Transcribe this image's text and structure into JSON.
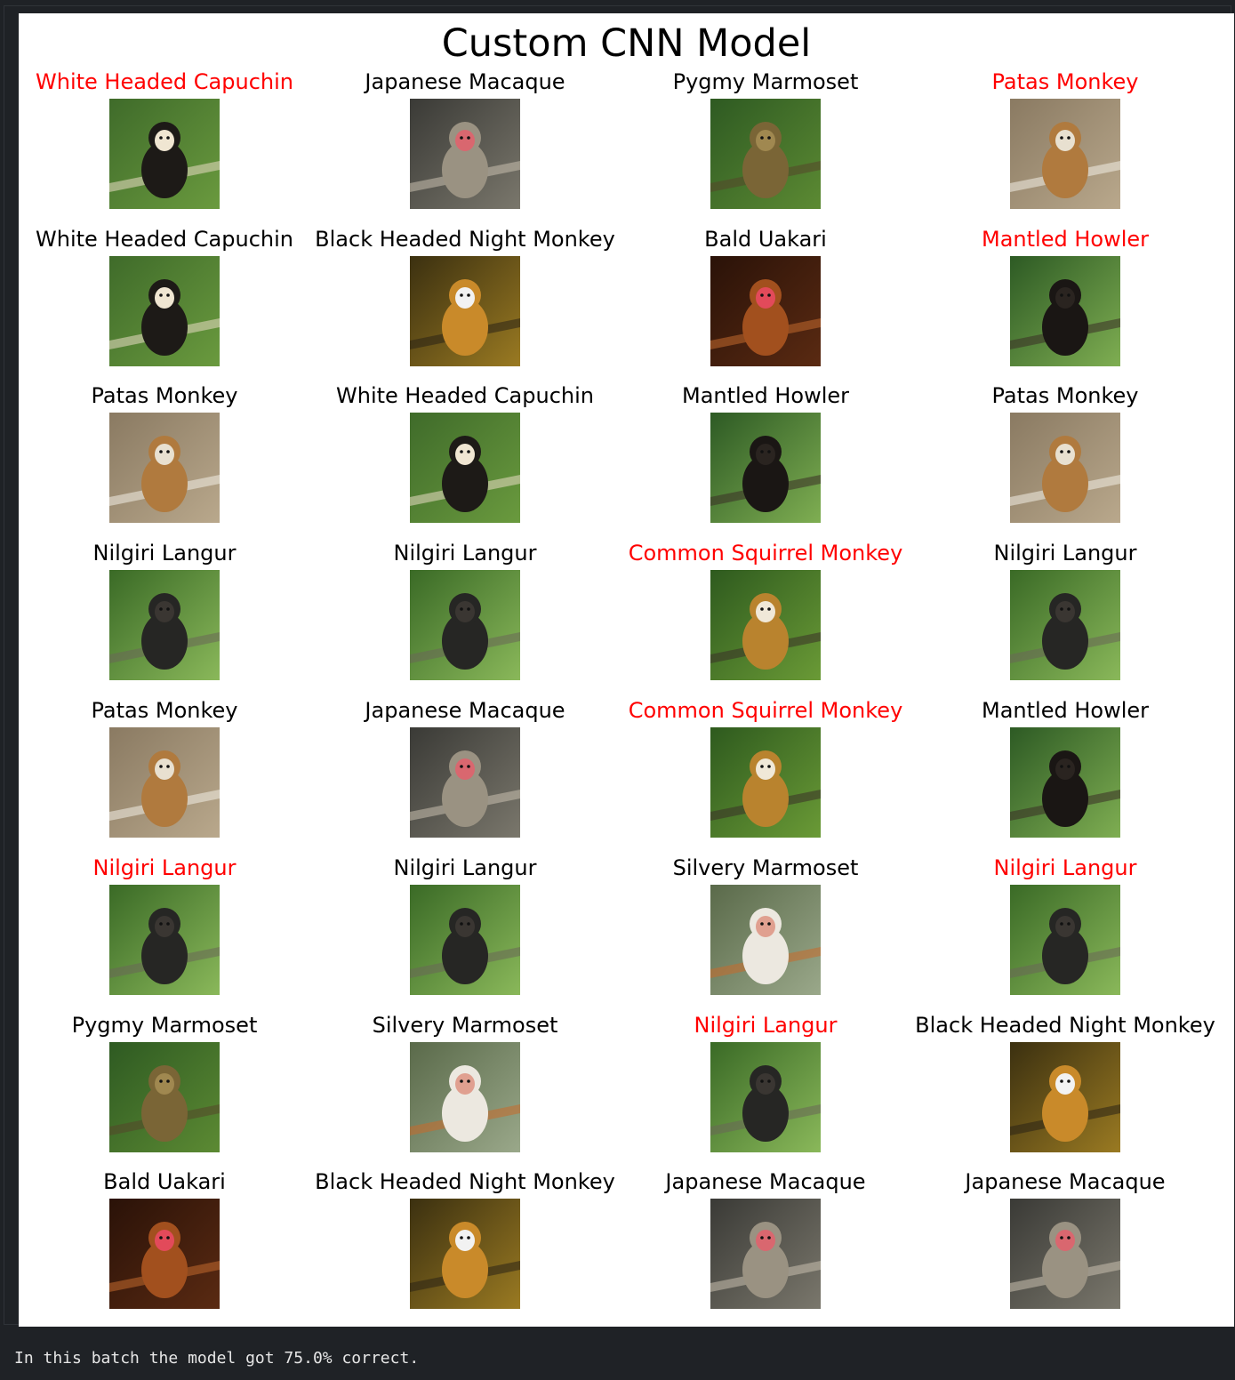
{
  "figure": {
    "title": "Custom CNN Model",
    "label_colors": {
      "correct": "#000000",
      "incorrect": "#ff0000"
    },
    "rows": [
      [
        {
          "label": "White Headed Capuchin",
          "correct": false,
          "icon": "white-headed-capuchin-photo"
        },
        {
          "label": "Japanese Macaque",
          "correct": true,
          "icon": "japanese-macaque-photo"
        },
        {
          "label": "Pygmy Marmoset",
          "correct": true,
          "icon": "pygmy-marmoset-photo"
        },
        {
          "label": "Patas Monkey",
          "correct": false,
          "icon": "patas-monkey-photo"
        }
      ],
      [
        {
          "label": "White Headed Capuchin",
          "correct": true,
          "icon": "white-headed-capuchin-photo"
        },
        {
          "label": "Black Headed Night Monkey",
          "correct": true,
          "icon": "black-headed-night-monkey-photo"
        },
        {
          "label": "Bald Uakari",
          "correct": true,
          "icon": "bald-uakari-photo"
        },
        {
          "label": "Mantled Howler",
          "correct": false,
          "icon": "mantled-howler-photo"
        }
      ],
      [
        {
          "label": "Patas Monkey",
          "correct": true,
          "icon": "patas-monkey-photo"
        },
        {
          "label": "White Headed Capuchin",
          "correct": true,
          "icon": "white-headed-capuchin-photo"
        },
        {
          "label": "Mantled Howler",
          "correct": true,
          "icon": "mantled-howler-photo"
        },
        {
          "label": "Patas Monkey",
          "correct": true,
          "icon": "patas-monkey-photo"
        }
      ],
      [
        {
          "label": "Nilgiri Langur",
          "correct": true,
          "icon": "nilgiri-langur-photo"
        },
        {
          "label": "Nilgiri Langur",
          "correct": true,
          "icon": "nilgiri-langur-photo"
        },
        {
          "label": "Common Squirrel Monkey",
          "correct": false,
          "icon": "common-squirrel-monkey-photo"
        },
        {
          "label": "Nilgiri Langur",
          "correct": true,
          "icon": "nilgiri-langur-photo"
        }
      ],
      [
        {
          "label": "Patas Monkey",
          "correct": true,
          "icon": "patas-monkey-photo"
        },
        {
          "label": "Japanese Macaque",
          "correct": true,
          "icon": "japanese-macaque-photo"
        },
        {
          "label": "Common Squirrel Monkey",
          "correct": false,
          "icon": "common-squirrel-monkey-photo"
        },
        {
          "label": "Mantled Howler",
          "correct": true,
          "icon": "mantled-howler-photo"
        }
      ],
      [
        {
          "label": "Nilgiri Langur",
          "correct": false,
          "icon": "nilgiri-langur-photo"
        },
        {
          "label": "Nilgiri Langur",
          "correct": true,
          "icon": "nilgiri-langur-photo"
        },
        {
          "label": "Silvery Marmoset",
          "correct": true,
          "icon": "silvery-marmoset-photo"
        },
        {
          "label": "Nilgiri Langur",
          "correct": false,
          "icon": "nilgiri-langur-photo"
        }
      ],
      [
        {
          "label": "Pygmy Marmoset",
          "correct": true,
          "icon": "pygmy-marmoset-photo"
        },
        {
          "label": "Silvery Marmoset",
          "correct": true,
          "icon": "silvery-marmoset-photo"
        },
        {
          "label": "Nilgiri Langur",
          "correct": false,
          "icon": "nilgiri-langur-photo"
        },
        {
          "label": "Black Headed Night Monkey",
          "correct": true,
          "icon": "black-headed-night-monkey-photo"
        }
      ],
      [
        {
          "label": "Bald Uakari",
          "correct": true,
          "icon": "bald-uakari-photo"
        },
        {
          "label": "Black Headed Night Monkey",
          "correct": true,
          "icon": "black-headed-night-monkey-photo"
        },
        {
          "label": "Japanese Macaque",
          "correct": true,
          "icon": "japanese-macaque-photo"
        },
        {
          "label": "Japanese Macaque",
          "correct": true,
          "icon": "japanese-macaque-photo"
        }
      ]
    ]
  },
  "output": {
    "text": "In this batch the model got 75.0% correct."
  }
}
